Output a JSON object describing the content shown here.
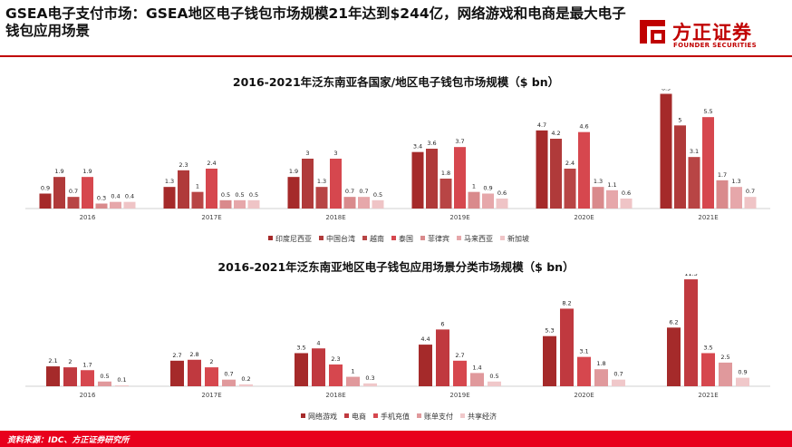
{
  "headline": "GSEA电子支付市场：GSEA地区电子钱包市场规模21年达到$244亿，网络游戏和电商是最大电子钱包应用场景",
  "logo": {
    "cn": "方正证券",
    "en": "FOUNDER SECURITIES"
  },
  "footer": "资料来源：IDC、方正证券研究所",
  "colors": {
    "brand_red": "#c00000",
    "footer_red": "#e8001c"
  },
  "chart_data": [
    {
      "type": "bar",
      "title": "2016-2021年泛东南亚各国家/地区电子钱包市场规模（$ bn）",
      "categories": [
        "2016",
        "2017E",
        "2018E",
        "2019E",
        "2020E",
        "2021E"
      ],
      "legend_position": "bottom",
      "grid": false,
      "ylim": [
        0,
        7.2
      ],
      "series": [
        {
          "name": "印度尼西亚",
          "color": "#a52a2a",
          "values": [
            0.9,
            1.3,
            1.9,
            3.4,
            4.7,
            6.9
          ]
        },
        {
          "name": "中国台湾",
          "color": "#b03a3a",
          "values": [
            1.9,
            2.3,
            3,
            3.6,
            4.2,
            5
          ]
        },
        {
          "name": "越南",
          "color": "#b84545",
          "values": [
            0.7,
            1,
            1.3,
            1.8,
            2.4,
            3.1
          ]
        },
        {
          "name": "泰国",
          "color": "#d6474e",
          "values": [
            1.9,
            2.4,
            3,
            3.7,
            4.6,
            5.5
          ]
        },
        {
          "name": "菲律宾",
          "color": "#d98a8c",
          "values": [
            0.3,
            0.5,
            0.7,
            1,
            1.3,
            1.7
          ]
        },
        {
          "name": "马来西亚",
          "color": "#e6a7aa",
          "values": [
            0.4,
            0.5,
            0.7,
            0.9,
            1.1,
            1.3
          ]
        },
        {
          "name": "新加坡",
          "color": "#efc4c6",
          "values": [
            0.4,
            0.5,
            0.5,
            0.6,
            0.6,
            0.7
          ]
        }
      ]
    },
    {
      "type": "bar",
      "title": "2016-2021年泛东南亚地区电子钱包应用场景分类市场规模（$ bn）",
      "categories": [
        "2016",
        "2017E",
        "2018E",
        "2019E",
        "2020E",
        "2021E"
      ],
      "legend_position": "bottom",
      "grid": false,
      "ylim": [
        0,
        11.5
      ],
      "series": [
        {
          "name": "网络游戏",
          "color": "#a52a2a",
          "values": [
            2.1,
            2.7,
            3.5,
            4.4,
            5.3,
            6.2
          ]
        },
        {
          "name": "电商",
          "color": "#c0393f",
          "values": [
            2,
            2.8,
            4,
            6,
            8.2,
            11.3
          ]
        },
        {
          "name": "手机充值",
          "color": "#d6474e",
          "values": [
            1.7,
            2,
            2.3,
            2.7,
            3.1,
            3.5
          ]
        },
        {
          "name": "账单支付",
          "color": "#e0999c",
          "values": [
            0.5,
            0.7,
            1,
            1.4,
            1.8,
            2.5
          ]
        },
        {
          "name": "共享经济",
          "color": "#f0c8ca",
          "values": [
            0.1,
            0.2,
            0.3,
            0.5,
            0.7,
            0.9
          ]
        }
      ]
    }
  ]
}
